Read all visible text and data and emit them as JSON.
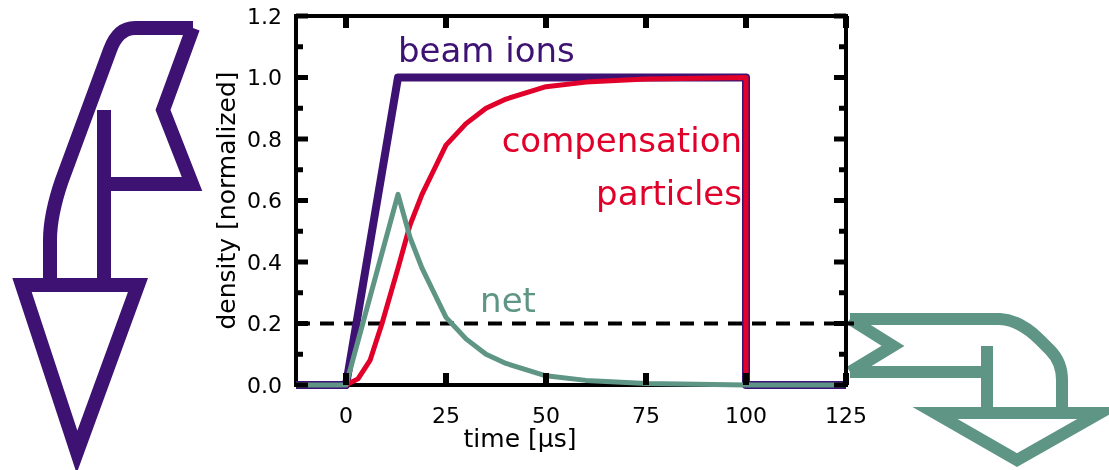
{
  "chart_data": {
    "type": "line",
    "xlabel": "time [µs]",
    "ylabel": "density [normalized]",
    "xlim": [
      -12.5,
      125
    ],
    "xticks": [
      0,
      25,
      50,
      75,
      100,
      125
    ],
    "ylim": [
      0,
      1.2
    ],
    "yticks": [
      {
        "value": 0,
        "label": "0.0"
      },
      {
        "value": 0.1,
        "label": null
      },
      {
        "value": 0.2,
        "label": "0.2"
      },
      {
        "value": 0.3,
        "label": null
      },
      {
        "value": 0.4,
        "label": "0.4"
      },
      {
        "value": 0.5,
        "label": null
      },
      {
        "value": 0.6,
        "label": "0.6"
      },
      {
        "value": 0.7,
        "label": null
      },
      {
        "value": 0.8,
        "label": "0.8"
      },
      {
        "value": 0.9,
        "label": null
      },
      {
        "value": 1,
        "label": "1.0"
      },
      {
        "value": 1.1,
        "label": null
      },
      {
        "value": 1.2,
        "label": "1.2"
      }
    ],
    "series": [
      {
        "name": "beam ions",
        "color": "#3d1273",
        "x": [
          -12.5,
          0,
          13,
          100,
          100,
          125
        ],
        "values": [
          0,
          0,
          1,
          1,
          0,
          0
        ]
      },
      {
        "name": "compensation particles",
        "color": "#e0002a",
        "x": [
          0,
          3,
          6,
          9,
          13,
          16,
          19,
          22,
          25,
          30,
          35,
          40,
          50,
          60,
          75,
          100,
          100
        ],
        "values": [
          0,
          0.02,
          0.08,
          0.2,
          0.38,
          0.52,
          0.62,
          0.7,
          0.78,
          0.85,
          0.9,
          0.93,
          0.97,
          0.985,
          0.995,
          1,
          0
        ]
      },
      {
        "name": "net",
        "color": "#5f9585",
        "x": [
          -12.5,
          0,
          13,
          16,
          19,
          22,
          25,
          30,
          35,
          40,
          50,
          60,
          75,
          100,
          125
        ],
        "values": [
          0,
          0,
          0.62,
          0.48,
          0.38,
          0.3,
          0.22,
          0.15,
          0.1,
          0.07,
          0.03,
          0.015,
          0.005,
          0,
          0
        ]
      }
    ],
    "ref_lines": [
      {
        "axis": "y",
        "value": 0.2,
        "color": "#000000",
        "line_style": "dashed"
      }
    ],
    "marker": "none",
    "line_style": "solid"
  }
}
